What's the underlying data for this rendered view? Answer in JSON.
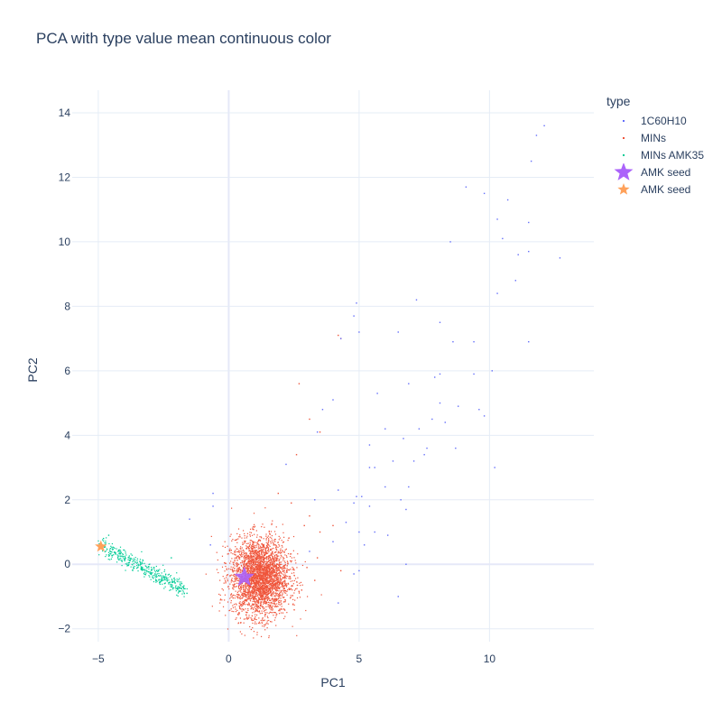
{
  "chart_data": {
    "type": "scatter",
    "title": "PCA with type value mean continuous color",
    "xlabel": "PC1",
    "ylabel": "PC2",
    "xlim": [
      -6.0,
      14.0
    ],
    "ylim": [
      -2.4,
      14.7
    ],
    "x_ticks": [
      -5,
      0,
      5,
      10
    ],
    "x_tick_labels": [
      "−5",
      "0",
      "5",
      "10"
    ],
    "y_ticks": [
      -2,
      0,
      2,
      4,
      6,
      8,
      10,
      12,
      14
    ],
    "y_tick_labels": [
      "−2",
      "0",
      "2",
      "4",
      "6",
      "8",
      "10",
      "12",
      "14"
    ],
    "grid": true,
    "legend": {
      "title": "type",
      "placement": "right"
    },
    "series": [
      {
        "name": "1C60H10",
        "color": "#636efa",
        "marker": "dot",
        "points": [
          [
            12.1,
            13.6
          ],
          [
            11.8,
            13.3
          ],
          [
            11.6,
            12.5
          ],
          [
            9.1,
            11.7
          ],
          [
            9.8,
            11.5
          ],
          [
            10.7,
            11.3
          ],
          [
            10.3,
            10.7
          ],
          [
            11.5,
            10.6
          ],
          [
            8.5,
            10.0
          ],
          [
            10.5,
            10.1
          ],
          [
            11.5,
            9.7
          ],
          [
            11.1,
            9.6
          ],
          [
            12.7,
            9.5
          ],
          [
            10.3,
            8.4
          ],
          [
            11.0,
            8.8
          ],
          [
            7.2,
            8.2
          ],
          [
            4.9,
            8.1
          ],
          [
            4.8,
            7.7
          ],
          [
            8.1,
            7.5
          ],
          [
            6.5,
            7.2
          ],
          [
            5.0,
            7.2
          ],
          [
            4.3,
            7.0
          ],
          [
            8.6,
            6.9
          ],
          [
            9.4,
            6.9
          ],
          [
            11.5,
            6.9
          ],
          [
            10.1,
            6.0
          ],
          [
            9.4,
            5.9
          ],
          [
            8.1,
            5.9
          ],
          [
            7.9,
            5.8
          ],
          [
            6.9,
            5.6
          ],
          [
            5.7,
            5.3
          ],
          [
            4.0,
            5.1
          ],
          [
            3.6,
            4.8
          ],
          [
            8.1,
            5.0
          ],
          [
            8.8,
            4.9
          ],
          [
            9.6,
            4.8
          ],
          [
            9.8,
            4.6
          ],
          [
            7.8,
            4.5
          ],
          [
            8.3,
            4.4
          ],
          [
            7.3,
            4.2
          ],
          [
            6.0,
            4.2
          ],
          [
            3.4,
            4.1
          ],
          [
            6.7,
            3.9
          ],
          [
            5.4,
            3.7
          ],
          [
            7.6,
            3.6
          ],
          [
            7.5,
            3.4
          ],
          [
            8.7,
            3.6
          ],
          [
            7.1,
            3.2
          ],
          [
            6.3,
            3.2
          ],
          [
            5.4,
            3.0
          ],
          [
            5.6,
            3.0
          ],
          [
            10.2,
            3.0
          ],
          [
            2.2,
            3.1
          ],
          [
            6.9,
            2.4
          ],
          [
            6.0,
            2.4
          ],
          [
            4.2,
            2.3
          ],
          [
            4.9,
            2.1
          ],
          [
            5.1,
            2.1
          ],
          [
            6.6,
            2.0
          ],
          [
            4.8,
            1.9
          ],
          [
            3.3,
            2.0
          ],
          [
            5.4,
            1.8
          ],
          [
            6.8,
            1.7
          ],
          [
            4.5,
            1.3
          ],
          [
            5.0,
            1.0
          ],
          [
            5.6,
            1.0
          ],
          [
            6.1,
            0.9
          ],
          [
            4.0,
            0.7
          ],
          [
            5.2,
            0.6
          ],
          [
            3.1,
            0.4
          ],
          [
            6.8,
            0.0
          ],
          [
            5.0,
            -0.2
          ],
          [
            4.8,
            -0.3
          ],
          [
            6.5,
            -1.0
          ],
          [
            4.2,
            -1.2
          ],
          [
            -0.6,
            2.2
          ],
          [
            -0.6,
            1.8
          ],
          [
            -0.7,
            0.6
          ],
          [
            -1.5,
            1.4
          ]
        ]
      },
      {
        "name": "MINs",
        "color": "#ef553b",
        "marker": "dot",
        "cluster": {
          "center": [
            1.2,
            -0.4
          ],
          "spread": [
            0.55,
            0.6
          ],
          "count": 3200
        },
        "points": [
          [
            4.2,
            7.1
          ],
          [
            4.3,
            7.0
          ],
          [
            2.7,
            5.6
          ],
          [
            3.1,
            4.5
          ],
          [
            3.5,
            4.1
          ],
          [
            2.6,
            3.4
          ],
          [
            3.1,
            1.5
          ],
          [
            3.5,
            1.0
          ],
          [
            4.0,
            1.2
          ],
          [
            2.8,
            -0.8
          ],
          [
            3.3,
            -0.5
          ],
          [
            2.4,
            1.9
          ],
          [
            2.0,
            -1.4
          ],
          [
            3.0,
            -0.1
          ],
          [
            4.3,
            -0.2
          ],
          [
            0.4,
            -1.5
          ],
          [
            0.9,
            -1.6
          ],
          [
            1.9,
            2.2
          ],
          [
            2.9,
            1.2
          ],
          [
            3.4,
            0.2
          ]
        ]
      },
      {
        "name": "MINs AMK35",
        "color": "#00cc96",
        "marker": "dot",
        "band": {
          "start": [
            -4.9,
            0.6
          ],
          "end": [
            -1.7,
            -0.8
          ],
          "width": 0.25,
          "count": 420
        },
        "points": [
          [
            -4.8,
            0.8
          ],
          [
            -4.6,
            0.9
          ],
          [
            -2.2,
            0.2
          ],
          [
            -1.8,
            -0.6
          ],
          [
            -1.6,
            -0.9
          ]
        ]
      },
      {
        "name": "AMK seed",
        "color": "#ab63fa",
        "marker": "star",
        "points": [
          [
            0.6,
            -0.4
          ]
        ]
      },
      {
        "name": "AMK seed",
        "color": "#ffa15a",
        "marker": "star",
        "points": [
          [
            -4.9,
            0.55
          ]
        ]
      }
    ],
    "colors": {
      "grid": "#e5ecf6",
      "zeroline": "#e5e8f8",
      "text": "#2a3f5f"
    }
  }
}
